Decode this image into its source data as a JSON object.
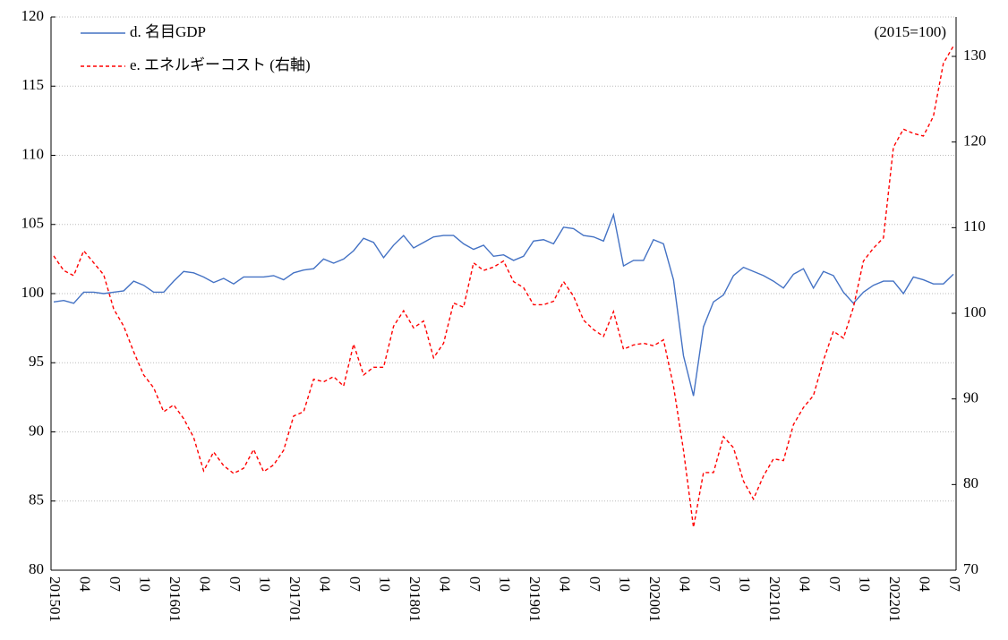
{
  "chart_data": {
    "type": "line",
    "annotation": "(2015=100)",
    "categories": [
      "201501",
      null,
      null,
      "04",
      null,
      null,
      "07",
      null,
      null,
      "10",
      null,
      null,
      "201601",
      null,
      null,
      "04",
      null,
      null,
      "07",
      null,
      null,
      "10",
      null,
      null,
      "201701",
      null,
      null,
      "04",
      null,
      null,
      "07",
      null,
      null,
      "10",
      null,
      null,
      "201801",
      null,
      null,
      "04",
      null,
      null,
      "07",
      null,
      null,
      "10",
      null,
      null,
      "201901",
      null,
      null,
      "04",
      null,
      null,
      "07",
      null,
      null,
      "10",
      null,
      null,
      "202001",
      null,
      null,
      "04",
      null,
      null,
      "07",
      null,
      null,
      "10",
      null,
      null,
      "202101",
      null,
      null,
      "04",
      null,
      null,
      "07",
      null,
      null,
      "10",
      null,
      null,
      "202201",
      null,
      null,
      "04",
      null,
      null,
      "07"
    ],
    "series": [
      {
        "name": "d. 名目GDP",
        "color": "#4472c4",
        "dash": false,
        "values": [
          99.4,
          99.5,
          99.3,
          100.1,
          100.1,
          100.0,
          100.1,
          100.2,
          100.9,
          100.6,
          100.1,
          100.1,
          100.9,
          101.6,
          101.5,
          101.2,
          100.8,
          101.1,
          100.7,
          101.2,
          101.2,
          101.2,
          101.3,
          101.0,
          101.5,
          101.7,
          101.8,
          102.5,
          102.2,
          102.5,
          103.1,
          104.0,
          103.7,
          102.6,
          103.5,
          104.2,
          103.3,
          103.7,
          104.1,
          104.2,
          104.2,
          103.6,
          103.2,
          103.5,
          102.7,
          102.8,
          102.4,
          102.7,
          103.8,
          103.9,
          103.6,
          104.8,
          104.7,
          104.2,
          104.1,
          103.8,
          105.7,
          102.0,
          102.4,
          102.4,
          103.9,
          103.6,
          101.0,
          95.5,
          92.6,
          97.6,
          99.4,
          99.9,
          101.3,
          101.9,
          101.6,
          101.3,
          100.9,
          100.4,
          101.4,
          101.8,
          100.4,
          101.6,
          101.3,
          100.1,
          99.3,
          100.1,
          100.6,
          100.9,
          100.9,
          100.0,
          101.2,
          101.0,
          100.7,
          100.7,
          101.4
        ]
      },
      {
        "name": "e. エネルギーコスト (右軸)",
        "color": "#ff0000",
        "dash": true,
        "axis": "y2",
        "values": [
          106.7,
          105.0,
          104.4,
          107.3,
          105.9,
          104.5,
          100.5,
          98.5,
          95.5,
          92.8,
          91.3,
          88.5,
          89.3,
          87.7,
          85.5,
          81.6,
          83.8,
          82.2,
          81.3,
          81.9,
          84.1,
          81.5,
          82.3,
          84.0,
          88.0,
          88.5,
          92.3,
          92.0,
          92.6,
          91.5,
          96.4,
          92.8,
          93.7,
          93.7,
          98.5,
          100.3,
          98.3,
          99.1,
          94.8,
          96.5,
          101.2,
          100.7,
          105.9,
          105.0,
          105.4,
          106.1,
          103.7,
          103.0,
          101.0,
          101.0,
          101.4,
          103.7,
          102.0,
          99.2,
          98.1,
          97.3,
          100.2,
          95.8,
          96.3,
          96.5,
          96.2,
          96.9,
          91.5,
          84.0,
          75.0,
          81.4,
          81.4,
          85.6,
          84.3,
          80.4,
          78.3,
          81.0,
          83.0,
          82.8,
          87.0,
          89.0,
          90.4,
          94.5,
          97.9,
          97.1,
          100.7,
          106.1,
          107.6,
          108.8,
          119.4,
          121.5,
          121.0,
          120.7,
          123.0,
          129.2,
          131.2
        ]
      }
    ],
    "ylim": [
      80,
      120
    ],
    "yticks": [
      80,
      85,
      90,
      95,
      100,
      105,
      110,
      115,
      120
    ],
    "y2lim": [
      70,
      134.6
    ],
    "y2ticks": [
      70,
      80,
      90,
      100,
      110,
      120,
      130
    ],
    "grid": true,
    "legend": "upper-left"
  }
}
